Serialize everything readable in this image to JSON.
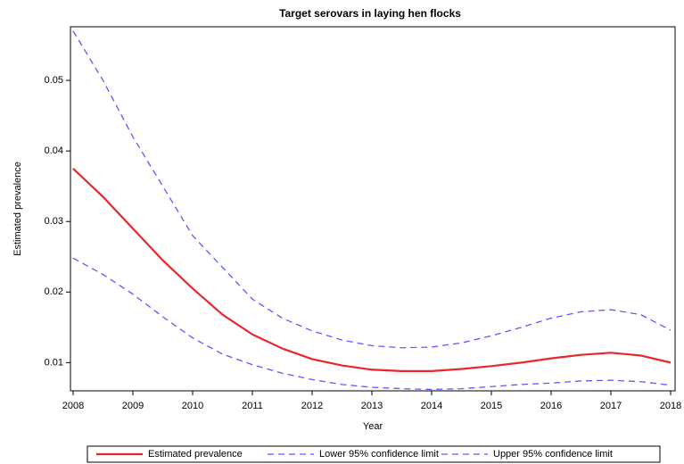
{
  "chart_data": {
    "type": "line",
    "title": "Target serovars in laying hen flocks",
    "x_label": "Year",
    "y_label": "Estimated prevalence",
    "x": [
      2008,
      2008.5,
      2009,
      2009.5,
      2010,
      2010.5,
      2011,
      2011.5,
      2012,
      2012.5,
      2013,
      2013.5,
      2014,
      2014.5,
      2015,
      2015.5,
      2016,
      2016.5,
      2017,
      2017.5,
      2018
    ],
    "series": [
      {
        "name": "Estimated prevalence",
        "color": "#e8262b",
        "dash": false,
        "values": [
          0.0375,
          0.0335,
          0.029,
          0.0245,
          0.0205,
          0.0168,
          0.014,
          0.012,
          0.0105,
          0.0096,
          0.009,
          0.0088,
          0.0088,
          0.0091,
          0.0095,
          0.01,
          0.0106,
          0.0111,
          0.0114,
          0.011,
          0.01
        ]
      },
      {
        "name": "Lower 95% confidence limit",
        "color": "#5a5aff",
        "dash": true,
        "values": [
          0.0248,
          0.0225,
          0.0197,
          0.0165,
          0.0135,
          0.0112,
          0.0097,
          0.0085,
          0.0076,
          0.0069,
          0.0065,
          0.0063,
          0.0062,
          0.0063,
          0.0066,
          0.0069,
          0.0071,
          0.0074,
          0.0075,
          0.0073,
          0.0068
        ]
      },
      {
        "name": "Upper 95% confidence limit",
        "color": "#5a5aff",
        "dash": true,
        "values": [
          0.057,
          0.05,
          0.042,
          0.035,
          0.028,
          0.0235,
          0.019,
          0.0163,
          0.0145,
          0.0132,
          0.0124,
          0.0121,
          0.0122,
          0.0128,
          0.0138,
          0.015,
          0.0163,
          0.0172,
          0.0175,
          0.0168,
          0.0146
        ]
      }
    ],
    "xlim": [
      2008,
      2018
    ],
    "xticks": [
      2008,
      2009,
      2010,
      2011,
      2012,
      2013,
      2014,
      2015,
      2016,
      2017,
      2018
    ],
    "ylim": [
      0.006,
      0.0576
    ],
    "yticks": [
      0.01,
      0.02,
      0.03,
      0.04,
      0.05
    ],
    "grid": false,
    "legend": "bottom"
  }
}
